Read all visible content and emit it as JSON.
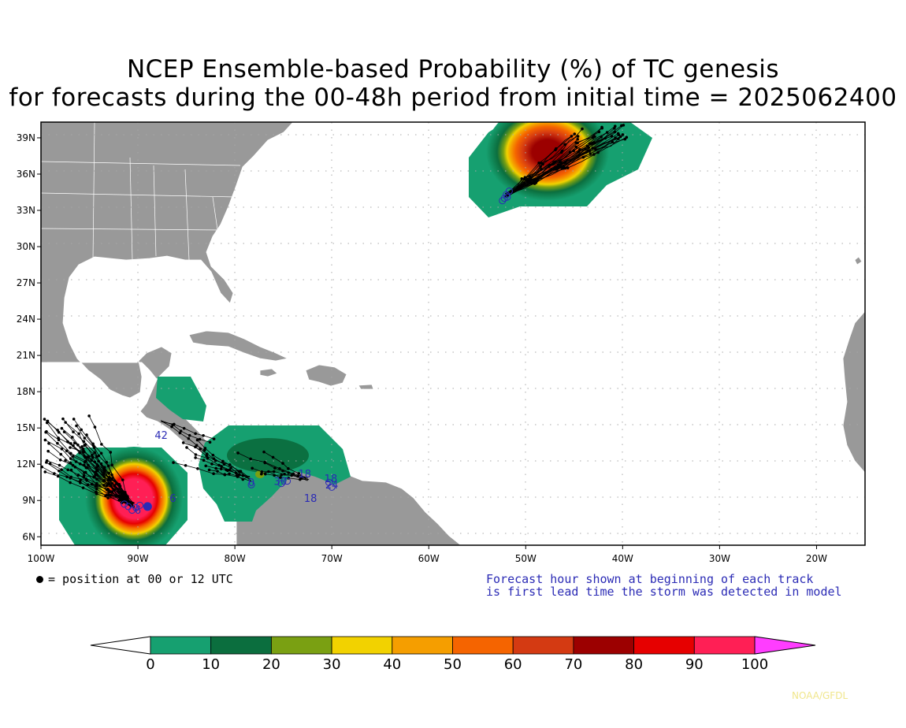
{
  "title_line1": "NCEP Ensemble-based Probability (%) of TC genesis",
  "title_line2": "for forecasts during the 00-48h period from initial time = 2025062400",
  "lat_labels": [
    "39N",
    "36N",
    "33N",
    "30N",
    "27N",
    "24N",
    "21N",
    "18N",
    "15N",
    "12N",
    "9N",
    "6N"
  ],
  "lon_labels": [
    "100W",
    "90W",
    "80W",
    "70W",
    "60W",
    "50W",
    "40W",
    "30W",
    "20W"
  ],
  "legend_left": "= position at 00 or 12 UTC",
  "legend_right_line1": "Forecast hour shown at beginning of each track",
  "legend_right_line2": "is first lead time the storm was detected in model",
  "colorbar": {
    "labels": [
      "0",
      "10",
      "20",
      "30",
      "40",
      "50",
      "60",
      "70",
      "80",
      "90",
      "100"
    ],
    "colors": [
      "#ffffff",
      "#16a070",
      "#0b6e3e",
      "#7aa012",
      "#f2d200",
      "#f59e00",
      "#f56400",
      "#d43a12",
      "#9c0000",
      "#e60000",
      "#ff1f55",
      "#ff3dff"
    ]
  },
  "track_labels": [
    {
      "text": "42",
      "lon": -87.6,
      "lat": 14.1
    },
    {
      "text": "6",
      "lon": -90.0,
      "lat": 7.9
    },
    {
      "text": "6",
      "lon": -86.4,
      "lat": 8.9
    },
    {
      "text": "0",
      "lon": -78.3,
      "lat": 10.2
    },
    {
      "text": "30",
      "lon": -75.3,
      "lat": 10.3
    },
    {
      "text": "18",
      "lon": -72.8,
      "lat": 10.9
    },
    {
      "text": "18",
      "lon": -72.2,
      "lat": 8.9
    },
    {
      "text": "18",
      "lon": -70.1,
      "lat": 10.5
    },
    {
      "text": "24",
      "lon": -70.0,
      "lat": 10.0
    }
  ],
  "credit": "NOAA/GFDL"
}
